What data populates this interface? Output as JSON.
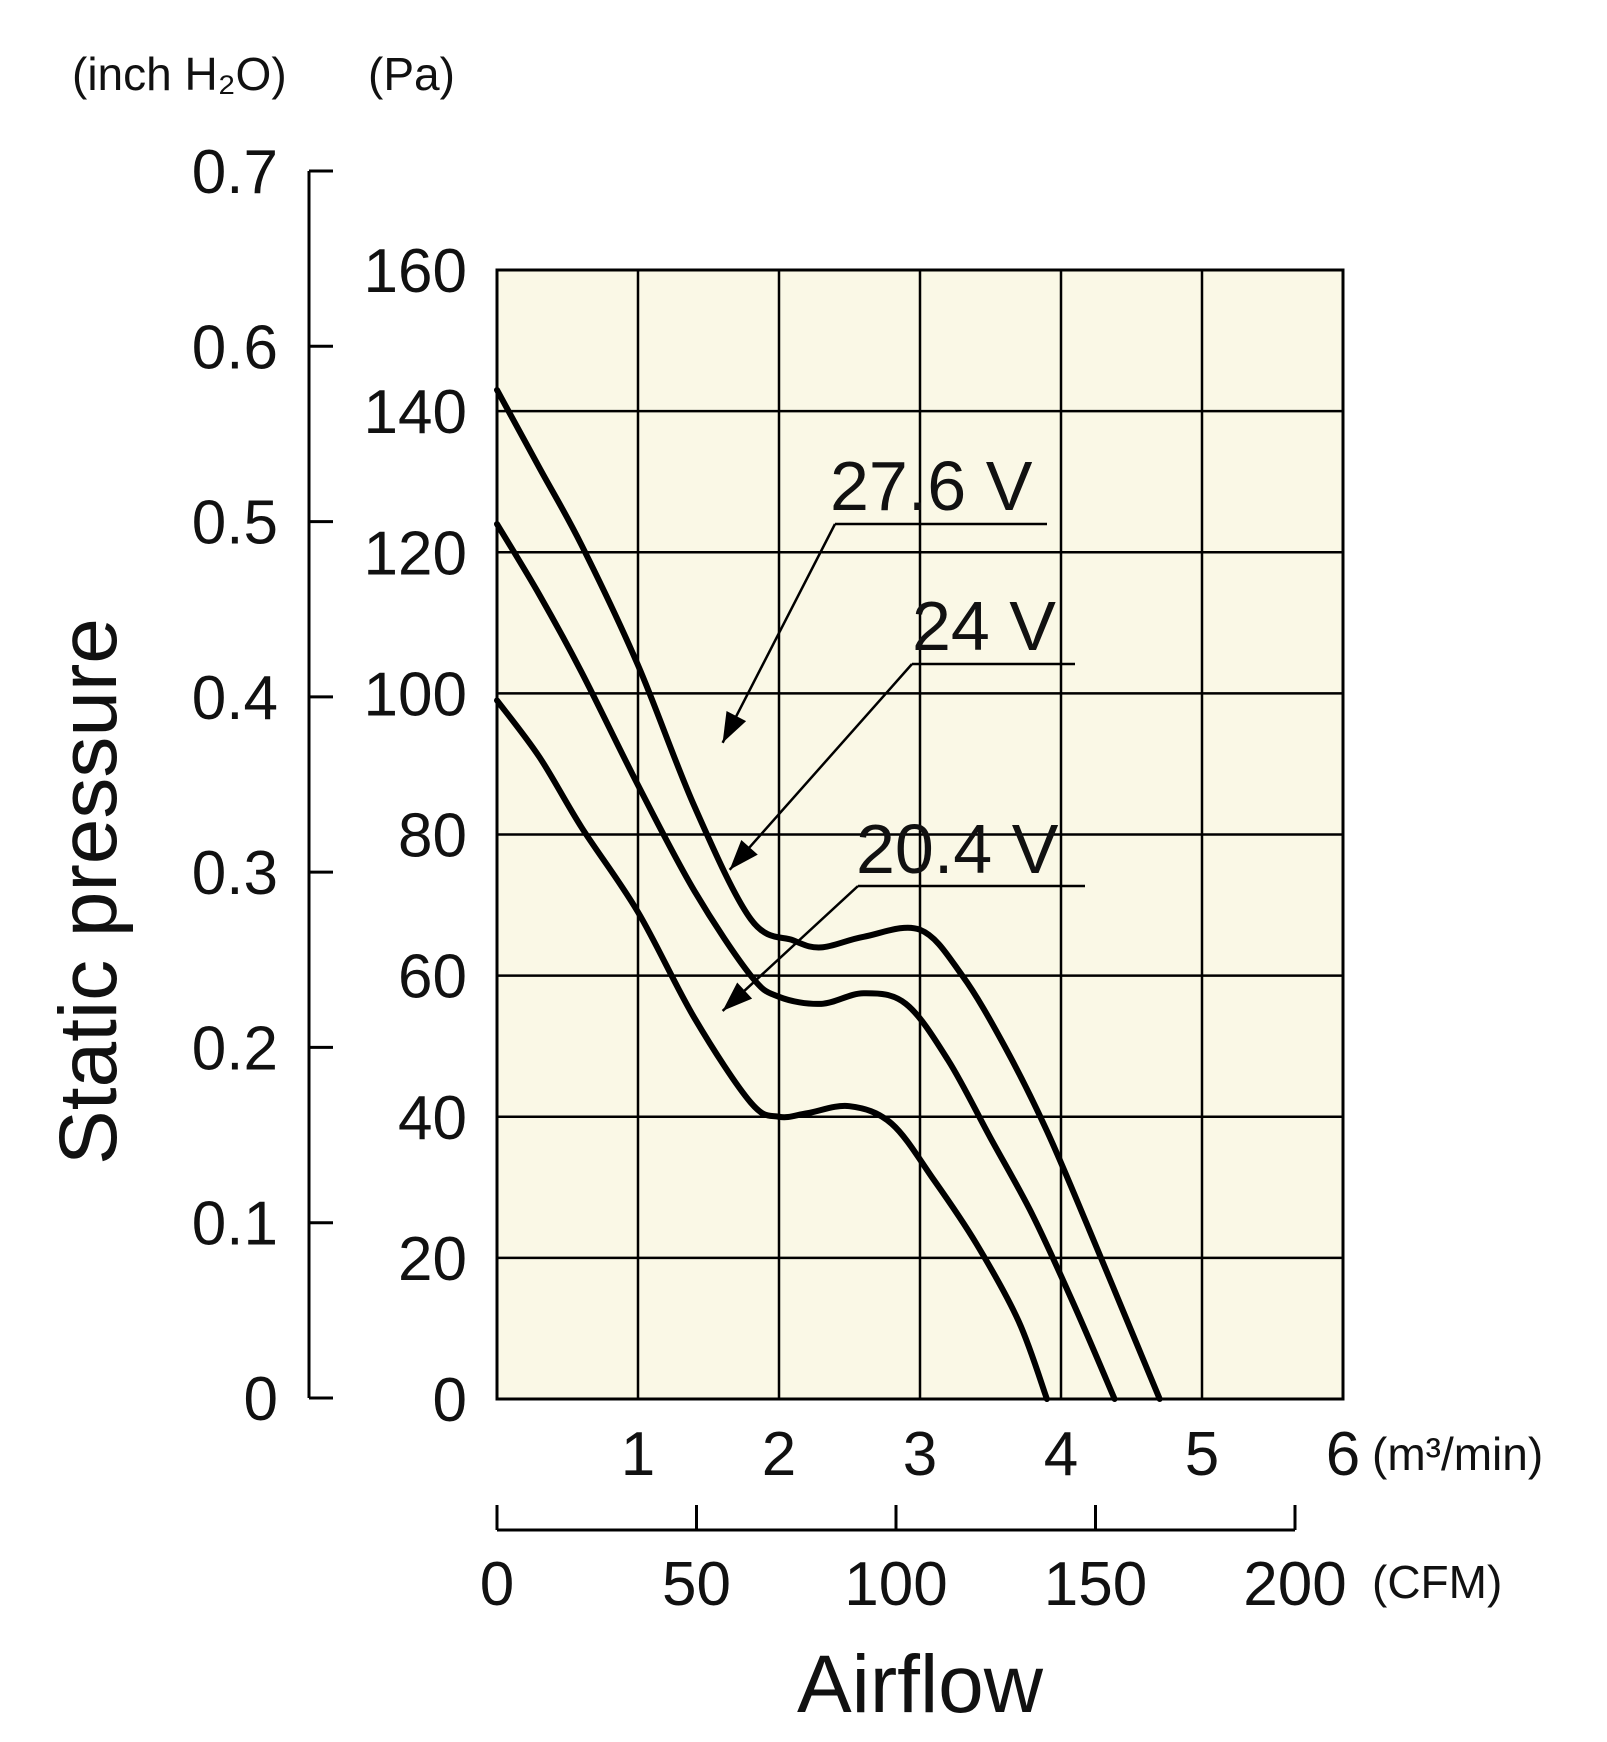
{
  "chart_data": {
    "type": "line",
    "xlabel": "Airflow",
    "ylabel": "Static pressure",
    "x_units": {
      "primary": "(m³/min)",
      "secondary": "(CFM)"
    },
    "y_units": {
      "primary": "(Pa)",
      "secondary": "(inch H₂O)"
    },
    "xlim": [
      0,
      6
    ],
    "ylim": [
      0,
      160
    ],
    "x_ticks": [
      "1",
      "2",
      "3",
      "4",
      "5",
      "6"
    ],
    "x2_ticks": [
      0,
      50,
      100,
      150,
      200
    ],
    "x2_tick_labels": [
      "0",
      "50",
      "100",
      "150",
      "200"
    ],
    "y_ticks": [
      0,
      20,
      40,
      60,
      80,
      100,
      120,
      140,
      160
    ],
    "y_tick_labels": [
      "0",
      "20",
      "40",
      "60",
      "80",
      "100",
      "120",
      "140",
      "160"
    ],
    "y2_ticks": [
      0,
      0.1,
      0.2,
      0.3,
      0.4,
      0.5,
      0.6,
      0.7
    ],
    "y2_tick_labels": [
      "0",
      "0.1",
      "0.2",
      "0.3",
      "0.4",
      "0.5",
      "0.6",
      "0.7"
    ],
    "grid": true,
    "background": "#faf8e6",
    "line_color": "#000000",
    "series": [
      {
        "name": "27.6 V",
        "points": [
          [
            0,
            143
          ],
          [
            0.3,
            132
          ],
          [
            0.6,
            121
          ],
          [
            1.0,
            104
          ],
          [
            1.4,
            84
          ],
          [
            1.8,
            68
          ],
          [
            2.1,
            65
          ],
          [
            2.3,
            64
          ],
          [
            2.6,
            65.5
          ],
          [
            3.0,
            66.5
          ],
          [
            3.3,
            60
          ],
          [
            3.6,
            50
          ],
          [
            3.9,
            38
          ],
          [
            4.2,
            24
          ],
          [
            4.45,
            12
          ],
          [
            4.7,
            0
          ]
        ]
      },
      {
        "name": "24 V",
        "points": [
          [
            0,
            124
          ],
          [
            0.3,
            114
          ],
          [
            0.6,
            103
          ],
          [
            1.0,
            87
          ],
          [
            1.4,
            72
          ],
          [
            1.8,
            60
          ],
          [
            2.0,
            57
          ],
          [
            2.3,
            56
          ],
          [
            2.6,
            57.5
          ],
          [
            2.9,
            56
          ],
          [
            3.2,
            48
          ],
          [
            3.5,
            37
          ],
          [
            3.8,
            26
          ],
          [
            4.1,
            13
          ],
          [
            4.38,
            0
          ]
        ]
      },
      {
        "name": "20.4 V",
        "points": [
          [
            0,
            99
          ],
          [
            0.3,
            91
          ],
          [
            0.6,
            81
          ],
          [
            1.0,
            69
          ],
          [
            1.4,
            54
          ],
          [
            1.8,
            42
          ],
          [
            2.0,
            40
          ],
          [
            2.2,
            40.5
          ],
          [
            2.5,
            41.5
          ],
          [
            2.8,
            39
          ],
          [
            3.1,
            31
          ],
          [
            3.4,
            22
          ],
          [
            3.7,
            11
          ],
          [
            3.9,
            0
          ]
        ]
      }
    ],
    "annotations": [
      {
        "text": "27.6 V",
        "series": "27.6 V",
        "arrow_to": [
          1.6,
          93
        ]
      },
      {
        "text": "24 V",
        "series": "24 V",
        "arrow_to": [
          1.65,
          75
        ]
      },
      {
        "text": "20.4 V",
        "series": "20.4 V",
        "arrow_to": [
          1.6,
          55
        ]
      }
    ]
  }
}
